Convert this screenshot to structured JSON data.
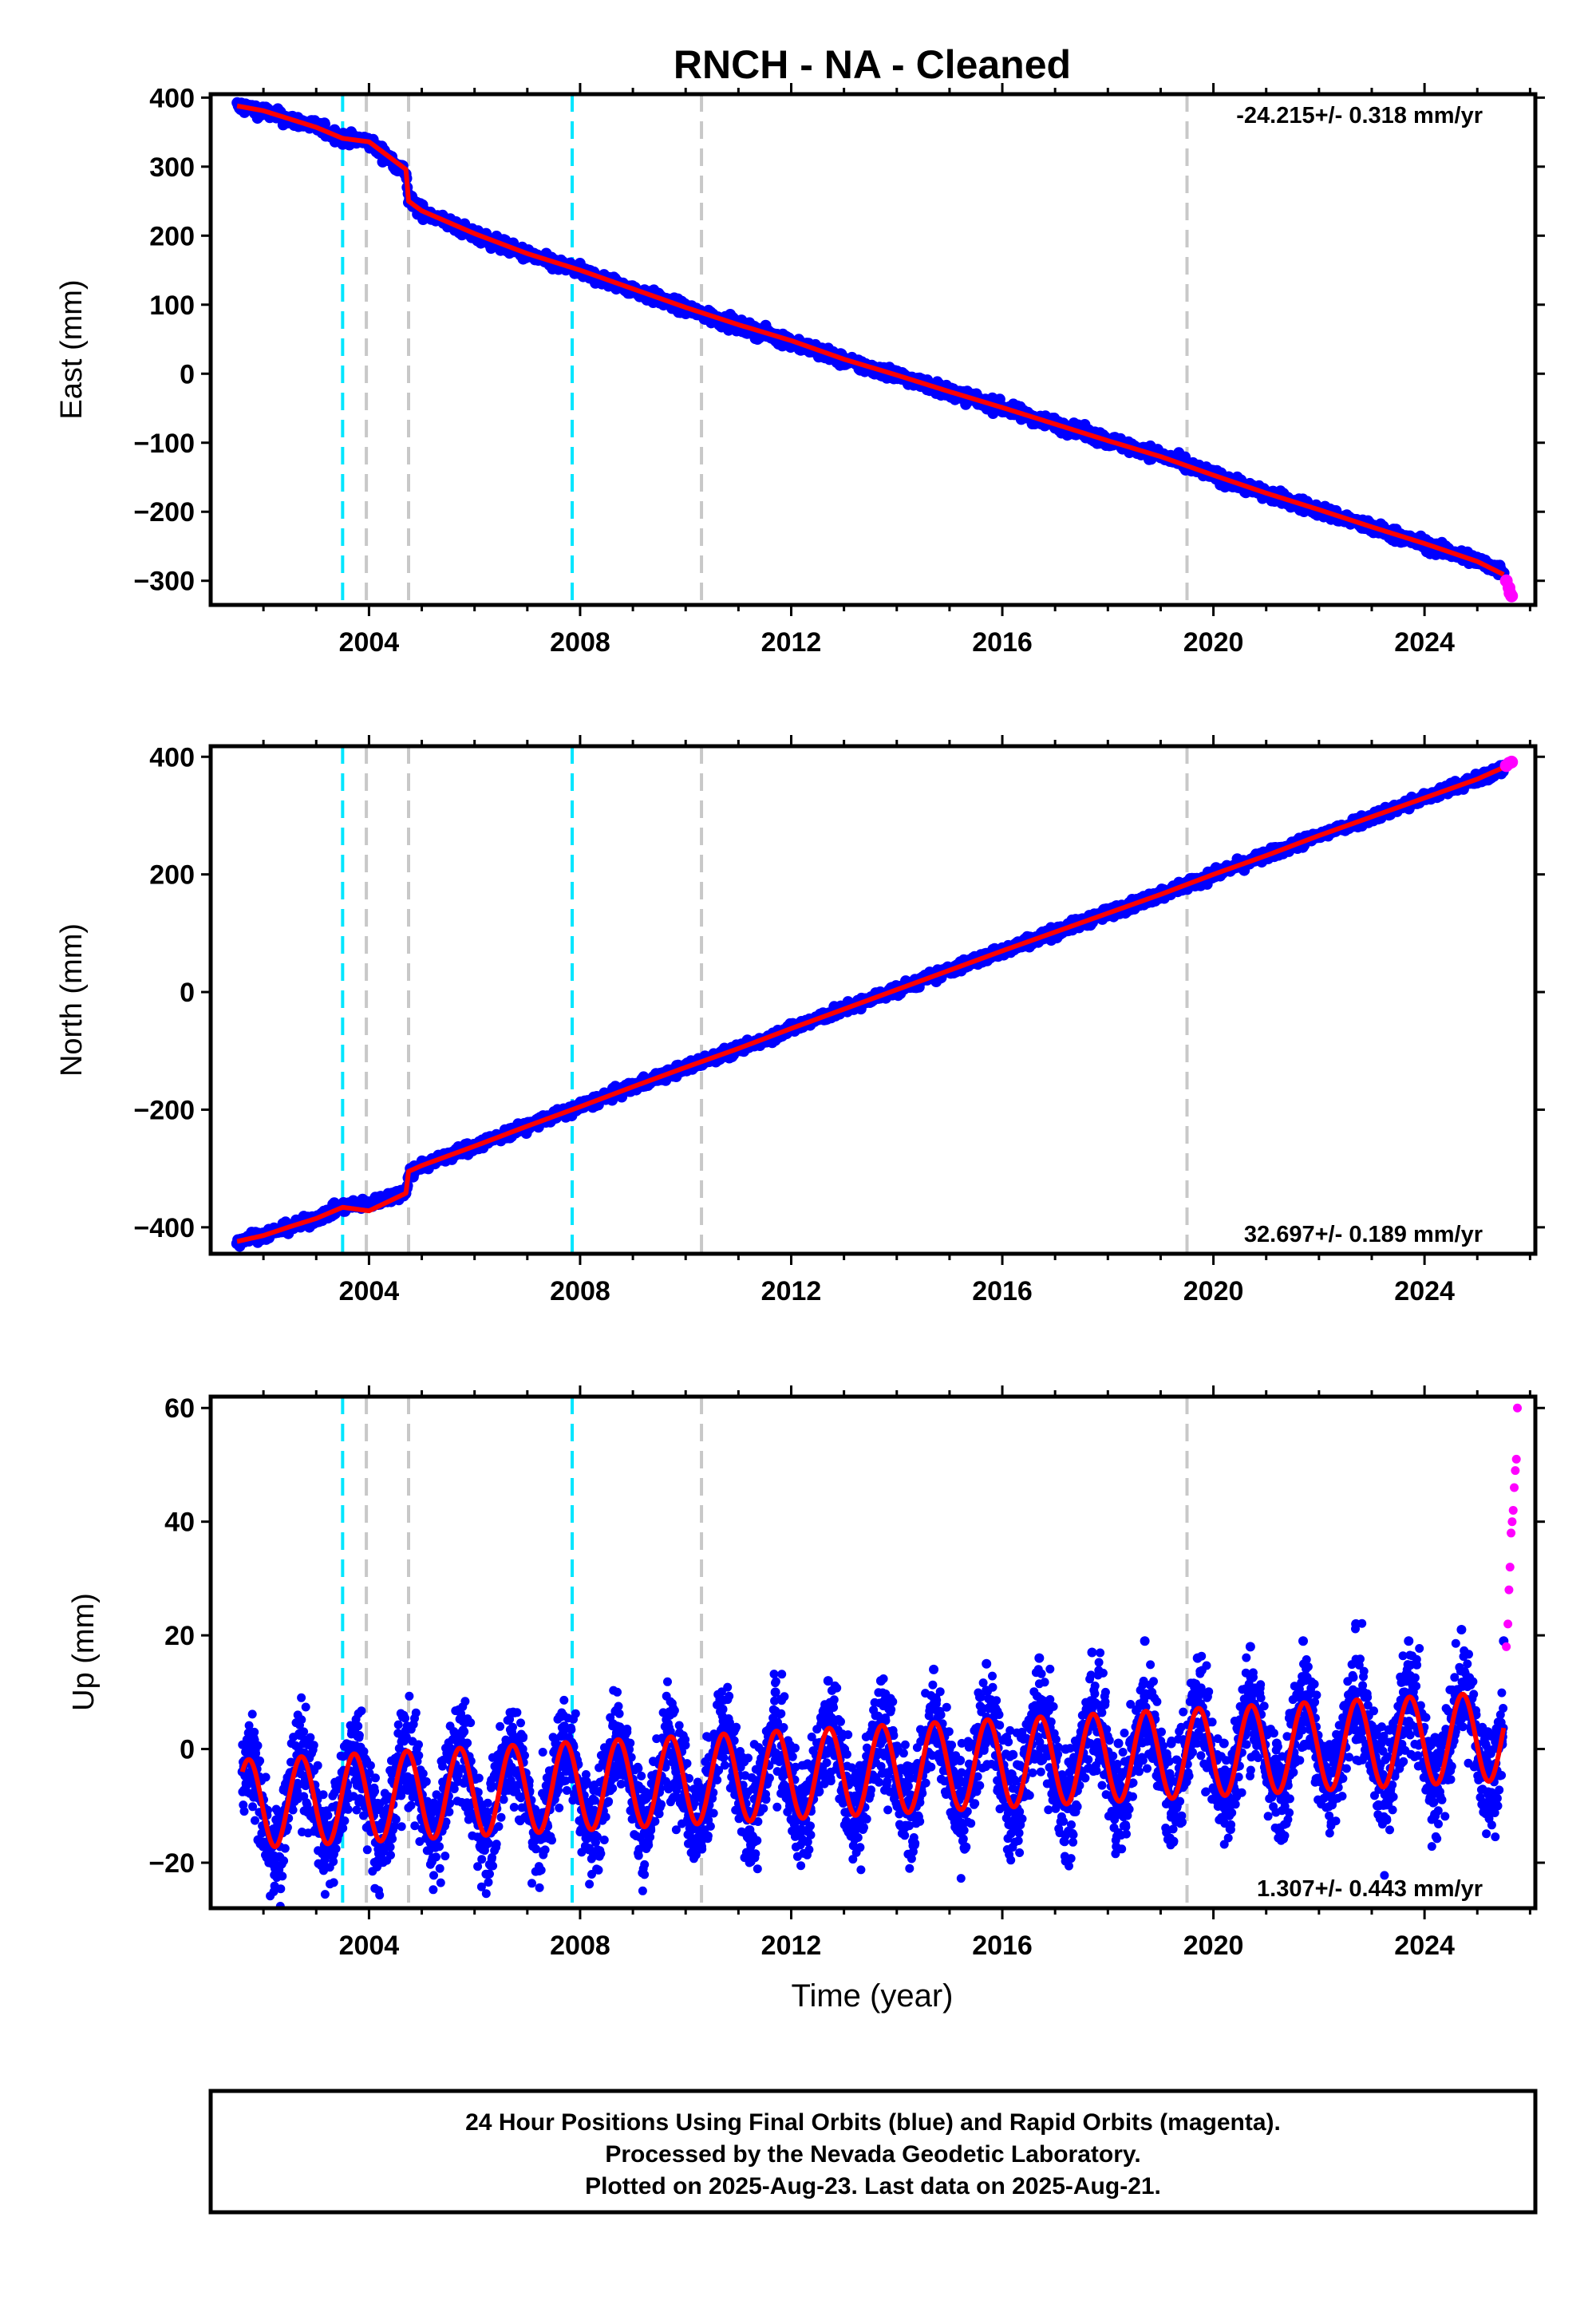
{
  "title": "RNCH  - NA - Cleaned",
  "colors": {
    "final_orbits": "#0000ff",
    "rapid_orbits": "#ff00ff",
    "model": "#ff0000",
    "equipment_change": "#c8c8c8",
    "earthquake": "#00e6ff"
  },
  "chart_data": [
    {
      "type": "scatter",
      "name": "east",
      "ylabel": "East (mm)",
      "ylim": [
        -335,
        405
      ],
      "yticks": [
        400,
        300,
        200,
        100,
        0,
        -100,
        -200,
        -300
      ],
      "xlim": [
        2001.0,
        2026.1
      ],
      "xticks": [
        2004,
        2008,
        2012,
        2016,
        2020,
        2024
      ],
      "rate_label": "-24.215+/- 0.318 mm/yr",
      "rate_position": "top-right",
      "events": {
        "equipment_change": [
          2003.95,
          2004.75,
          2010.3,
          2019.5
        ],
        "earthquake": [
          2003.5,
          2007.85
        ]
      },
      "series": [
        {
          "name": "Final Orbits",
          "color": "#0000ff",
          "points": [
            [
              2001.5,
              388
            ],
            [
              2002.0,
              380
            ],
            [
              2002.5,
              368
            ],
            [
              2003.0,
              358
            ],
            [
              2003.5,
              341
            ],
            [
              2004.0,
              336
            ],
            [
              2004.7,
              292
            ],
            [
              2004.75,
              252
            ],
            [
              2005.0,
              236
            ],
            [
              2006.0,
              201
            ],
            [
              2007.0,
              172
            ],
            [
              2008.0,
              148
            ],
            [
              2009.0,
              122
            ],
            [
              2010.0,
              94
            ],
            [
              2011.0,
              69
            ],
            [
              2012.0,
              47
            ],
            [
              2013.0,
              19
            ],
            [
              2014.0,
              -2
            ],
            [
              2015.0,
              -27
            ],
            [
              2016.0,
              -49
            ],
            [
              2017.0,
              -73
            ],
            [
              2018.0,
              -97
            ],
            [
              2019.0,
              -118
            ],
            [
              2020.0,
              -147
            ],
            [
              2021.0,
              -174
            ],
            [
              2022.0,
              -198
            ],
            [
              2023.0,
              -223
            ],
            [
              2024.0,
              -247
            ],
            [
              2025.0,
              -271
            ],
            [
              2025.5,
              -287
            ]
          ]
        },
        {
          "name": "Rapid Orbits",
          "color": "#ff00ff",
          "points": [
            [
              2025.55,
              -300
            ],
            [
              2025.6,
              -310
            ],
            [
              2025.62,
              -318
            ],
            [
              2025.65,
              -322
            ]
          ]
        },
        {
          "name": "Model",
          "color": "#ff0000",
          "points": [
            [
              2001.5,
              388
            ],
            [
              2002.0,
              381
            ],
            [
              2002.5,
              369
            ],
            [
              2003.0,
              357
            ],
            [
              2003.5,
              341
            ],
            [
              2004.0,
              336
            ],
            [
              2004.7,
              296
            ],
            [
              2004.75,
              250
            ],
            [
              2005.0,
              236
            ],
            [
              2006.0,
              203
            ],
            [
              2007.0,
              174
            ],
            [
              2008.0,
              150
            ],
            [
              2009.0,
              123
            ],
            [
              2010.0,
              96
            ],
            [
              2011.0,
              71
            ],
            [
              2012.0,
              48
            ],
            [
              2013.0,
              21
            ],
            [
              2014.0,
              -2
            ],
            [
              2015.0,
              -26
            ],
            [
              2016.0,
              -49
            ],
            [
              2017.0,
              -73
            ],
            [
              2018.0,
              -97
            ],
            [
              2019.0,
              -120
            ],
            [
              2020.0,
              -147
            ],
            [
              2021.0,
              -173
            ],
            [
              2022.0,
              -197
            ],
            [
              2023.0,
              -222
            ],
            [
              2024.0,
              -246
            ],
            [
              2025.0,
              -272
            ],
            [
              2025.5,
              -291
            ]
          ]
        }
      ]
    },
    {
      "type": "scatter",
      "name": "north",
      "ylabel": "North (mm)",
      "ylim": [
        -445,
        418
      ],
      "yticks": [
        400,
        200,
        0,
        -200,
        -400
      ],
      "xlim": [
        2001.0,
        2026.1
      ],
      "xticks": [
        2004,
        2008,
        2012,
        2016,
        2020,
        2024
      ],
      "rate_label": "32.697+/- 0.189 mm/yr",
      "rate_position": "bottom-right",
      "events": {
        "equipment_change": [
          2003.95,
          2004.75,
          2010.3,
          2019.5
        ],
        "earthquake": [
          2003.5,
          2007.85
        ]
      },
      "series": [
        {
          "name": "Final Orbits",
          "color": "#0000ff",
          "points": [
            [
              2001.5,
              -423
            ],
            [
              2002.0,
              -413
            ],
            [
              2002.5,
              -400
            ],
            [
              2003.0,
              -385
            ],
            [
              2003.5,
              -365
            ],
            [
              2004.0,
              -360
            ],
            [
              2004.7,
              -340
            ],
            [
              2004.75,
              -308
            ],
            [
              2005.0,
              -295
            ],
            [
              2006.0,
              -262
            ],
            [
              2007.0,
              -228
            ],
            [
              2008.0,
              -195
            ],
            [
              2009.0,
              -161
            ],
            [
              2010.0,
              -128
            ],
            [
              2011.0,
              -97
            ],
            [
              2012.0,
              -62
            ],
            [
              2013.0,
              -29
            ],
            [
              2014.0,
              4
            ],
            [
              2015.0,
              37
            ],
            [
              2016.0,
              70
            ],
            [
              2017.0,
              102
            ],
            [
              2018.0,
              134
            ],
            [
              2019.0,
              166
            ],
            [
              2020.0,
              200
            ],
            [
              2021.0,
              232
            ],
            [
              2022.0,
              266
            ],
            [
              2023.0,
              298
            ],
            [
              2024.0,
              330
            ],
            [
              2025.0,
              362
            ],
            [
              2025.5,
              380
            ]
          ]
        },
        {
          "name": "Rapid Orbits",
          "color": "#ff00ff",
          "points": [
            [
              2025.55,
              385
            ],
            [
              2025.6,
              389
            ],
            [
              2025.65,
              391
            ]
          ]
        },
        {
          "name": "Model",
          "color": "#ff0000",
          "points": [
            [
              2001.5,
              -424
            ],
            [
              2002.0,
              -414
            ],
            [
              2002.5,
              -399
            ],
            [
              2003.0,
              -385
            ],
            [
              2003.5,
              -366
            ],
            [
              2004.0,
              -372
            ],
            [
              2004.7,
              -342
            ],
            [
              2004.75,
              -305
            ],
            [
              2005.0,
              -295
            ],
            [
              2006.0,
              -262
            ],
            [
              2007.0,
              -228
            ],
            [
              2008.0,
              -195
            ],
            [
              2009.0,
              -161
            ],
            [
              2010.0,
              -128
            ],
            [
              2011.0,
              -96
            ],
            [
              2012.0,
              -62
            ],
            [
              2013.0,
              -29
            ],
            [
              2014.0,
              4
            ],
            [
              2015.0,
              37
            ],
            [
              2016.0,
              70
            ],
            [
              2017.0,
              102
            ],
            [
              2018.0,
              134
            ],
            [
              2019.0,
              166
            ],
            [
              2020.0,
              200
            ],
            [
              2021.0,
              232
            ],
            [
              2022.0,
              266
            ],
            [
              2023.0,
              298
            ],
            [
              2024.0,
              330
            ],
            [
              2025.0,
              362
            ],
            [
              2025.5,
              382
            ]
          ]
        }
      ]
    },
    {
      "type": "scatter",
      "name": "up",
      "ylabel": "Up (mm)",
      "xlabel": "Time (year)",
      "ylim": [
        -28,
        62
      ],
      "yticks": [
        60,
        40,
        20,
        0,
        -20
      ],
      "xlim": [
        2001.0,
        2026.1
      ],
      "xticks": [
        2004,
        2008,
        2012,
        2016,
        2020,
        2024
      ],
      "rate_label": "1.307+/- 0.443 mm/yr",
      "rate_position": "bottom-right",
      "events": {
        "equipment_change": [
          2003.95,
          2004.75,
          2010.3,
          2019.5
        ],
        "earthquake": [
          2003.5,
          2007.85
        ]
      },
      "series": [
        {
          "name": "Final Orbits",
          "color": "#0000ff",
          "points": [
            [
              2001.6,
              -4
            ],
            [
              2001.9,
              -16
            ],
            [
              2002.2,
              -20
            ],
            [
              2002.7,
              -1
            ],
            [
              2003.2,
              -15
            ],
            [
              2003.7,
              4
            ],
            [
              2004.2,
              -14
            ],
            [
              2004.7,
              2
            ],
            [
              2005.2,
              -16
            ],
            [
              2005.7,
              1
            ],
            [
              2006.2,
              -15
            ],
            [
              2006.7,
              3
            ],
            [
              2007.2,
              -14
            ],
            [
              2007.7,
              4
            ],
            [
              2008.2,
              -13
            ],
            [
              2008.7,
              4
            ],
            [
              2009.2,
              -12
            ],
            [
              2009.7,
              6
            ],
            [
              2010.2,
              -12
            ],
            [
              2010.7,
              7
            ],
            [
              2011.2,
              -11
            ],
            [
              2011.7,
              10
            ],
            [
              2012.2,
              -7
            ],
            [
              2012.7,
              12
            ],
            [
              2013.2,
              -5
            ],
            [
              2013.7,
              12
            ],
            [
              2014.2,
              -3
            ],
            [
              2014.7,
              14
            ],
            [
              2015.2,
              -2
            ],
            [
              2015.7,
              15
            ],
            [
              2016.2,
              -1
            ],
            [
              2016.7,
              16
            ],
            [
              2017.2,
              0
            ],
            [
              2017.7,
              17
            ],
            [
              2018.2,
              1
            ],
            [
              2018.7,
              19
            ],
            [
              2019.2,
              1
            ],
            [
              2019.7,
              16
            ],
            [
              2020.2,
              1
            ],
            [
              2020.7,
              18
            ],
            [
              2021.2,
              1
            ],
            [
              2021.7,
              19
            ],
            [
              2022.2,
              0
            ],
            [
              2022.7,
              22
            ],
            [
              2023.2,
              2
            ],
            [
              2023.7,
              19
            ],
            [
              2024.2,
              2
            ],
            [
              2024.7,
              21
            ],
            [
              2025.2,
              3
            ],
            [
              2025.5,
              19
            ]
          ]
        },
        {
          "name": "Rapid Orbits",
          "color": "#ff00ff",
          "points": [
            [
              2025.55,
              18
            ],
            [
              2025.58,
              22
            ],
            [
              2025.6,
              28
            ],
            [
              2025.62,
              32
            ],
            [
              2025.64,
              38
            ],
            [
              2025.66,
              40
            ],
            [
              2025.68,
              42
            ],
            [
              2025.7,
              46
            ],
            [
              2025.72,
              49
            ],
            [
              2025.74,
              51
            ],
            [
              2025.76,
              60
            ]
          ]
        },
        {
          "name": "Model",
          "color": "#ff0000",
          "model": {
            "t0": 2002.0,
            "offset": -9.5,
            "trend": 0.5,
            "amplitude": 7.8,
            "phase_year": 2002.72
          }
        }
      ]
    }
  ],
  "footer": {
    "line1": "24 Hour Positions Using Final Orbits (blue) and Rapid Orbits (magenta).",
    "line2": "Processed by the Nevada Geodetic Laboratory.",
    "line3": "Plotted on 2025-Aug-23. Last data on 2025-Aug-21."
  }
}
